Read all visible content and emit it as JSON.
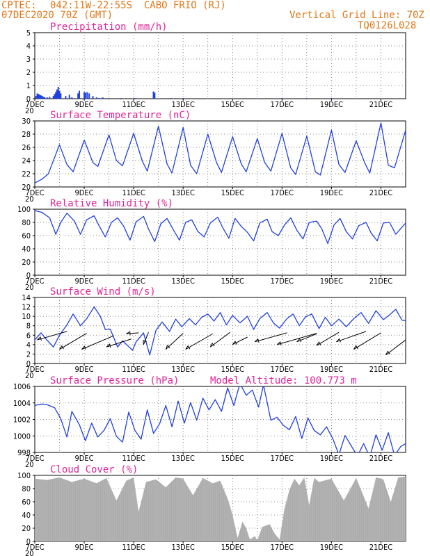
{
  "header": {
    "source": "CPTEC:",
    "location": "042:11W-22:55S  CABO FRIO (RJ)",
    "run": "07DEC2020 70Z (GMT)",
    "grid_note": "Vertical Grid Line: 70Z",
    "station_code": "TQ0126L028"
  },
  "colors": {
    "header": "#e07818",
    "titles": "#e0249a",
    "series": "#1f3fe0",
    "cloud": "#aaaaaa"
  },
  "x_ticks": [
    "7DEC",
    "9DEC",
    "11DEC",
    "13DEC",
    "15DEC",
    "17DEC",
    "19DEC",
    "21DEC"
  ],
  "x_tick_sub": "20",
  "chart_data": [
    {
      "id": "precip",
      "type": "bar",
      "title": "Precipitation (mm/h)",
      "ylim": [
        0,
        5
      ],
      "yticks": [
        "0",
        "1",
        "2",
        "3",
        "4",
        "5"
      ],
      "x_days": [
        0.05,
        0.1,
        0.15,
        0.2,
        0.25,
        0.3,
        0.35,
        0.4,
        0.5,
        0.6,
        0.75,
        0.8,
        0.85,
        0.9,
        0.95,
        1.0,
        1.05,
        1.25,
        1.4,
        1.5,
        1.75,
        1.8,
        2.0,
        2.05,
        2.12,
        2.2,
        2.35,
        2.5,
        2.6,
        2.75,
        3.0,
        3.5,
        4.05,
        4.8,
        4.85,
        5.5,
        6.0,
        7.0,
        8.0,
        9.0,
        10.0,
        11.0,
        12.0,
        13.0,
        14.0
      ],
      "values": [
        0.2,
        0.4,
        0.35,
        0.3,
        0.25,
        0.2,
        0.15,
        0.1,
        0.1,
        0.15,
        0.2,
        0.35,
        0.5,
        0.7,
        0.9,
        0.6,
        0.4,
        0.2,
        0.3,
        0.1,
        0.4,
        0.6,
        0.5,
        0.45,
        0.5,
        0.4,
        0.2,
        0.1,
        0.05,
        0.1,
        0.05,
        0.05,
        0.05,
        0.55,
        0.45,
        0.05,
        0.05,
        0.02,
        0.02,
        0.03,
        0.05,
        0.05,
        0.05,
        0.03,
        0.03
      ]
    },
    {
      "id": "temp",
      "type": "line",
      "title": "Surface Temperature (nC)",
      "ylim": [
        20,
        30
      ],
      "yticks": [
        "20",
        "22",
        "24",
        "26",
        "28",
        "30"
      ],
      "x_days": [
        0,
        0.3,
        0.55,
        1.0,
        1.3,
        1.55,
        2.0,
        2.35,
        2.55,
        3.0,
        3.3,
        3.55,
        4.0,
        4.35,
        4.55,
        5.0,
        5.35,
        5.55,
        6.0,
        6.3,
        6.55,
        7.0,
        7.35,
        7.55,
        8.0,
        8.35,
        8.55,
        9.0,
        9.3,
        9.55,
        10.0,
        10.35,
        10.55,
        11.0,
        11.35,
        11.55,
        12.0,
        12.3,
        12.55,
        13.0,
        13.35,
        13.55,
        14.0,
        14.3,
        14.55,
        15.0
      ],
      "values": [
        20.6,
        21.2,
        22.0,
        26.4,
        23.4,
        22.3,
        27.1,
        23.7,
        23.1,
        27.9,
        24.0,
        23.2,
        28.1,
        23.9,
        22.4,
        29.2,
        23.5,
        22.1,
        29.0,
        23.3,
        22.0,
        28.0,
        23.7,
        22.2,
        27.6,
        23.5,
        22.3,
        27.3,
        23.7,
        22.4,
        28.1,
        22.9,
        21.9,
        27.7,
        22.3,
        21.8,
        28.6,
        23.4,
        22.2,
        27.0,
        23.6,
        22.1,
        29.7,
        23.3,
        22.9,
        28.6
      ]
    },
    {
      "id": "rh",
      "type": "line",
      "title": "Relative Humidity (%)",
      "ylim": [
        0,
        100
      ],
      "yticks": [
        "0",
        "20",
        "40",
        "60",
        "80",
        "100"
      ],
      "x_days": [
        0,
        0.3,
        0.6,
        0.85,
        1.05,
        1.3,
        1.6,
        1.85,
        2.1,
        2.4,
        2.6,
        2.85,
        3.1,
        3.35,
        3.6,
        3.85,
        4.1,
        4.4,
        4.6,
        4.85,
        5.1,
        5.35,
        5.6,
        5.85,
        6.1,
        6.35,
        6.6,
        6.85,
        7.1,
        7.4,
        7.6,
        7.85,
        8.1,
        8.35,
        8.6,
        8.85,
        9.1,
        9.4,
        9.6,
        9.85,
        10.1,
        10.35,
        10.6,
        10.85,
        11.1,
        11.4,
        11.6,
        11.85,
        12.1,
        12.35,
        12.6,
        12.85,
        13.1,
        13.4,
        13.6,
        13.85,
        14.1,
        14.35,
        14.6,
        15.0
      ],
      "values": [
        98,
        95,
        87,
        62,
        80,
        94,
        82,
        62,
        84,
        90,
        75,
        58,
        80,
        87,
        74,
        53,
        81,
        89,
        70,
        51,
        78,
        86,
        69,
        53,
        80,
        84,
        66,
        58,
        79,
        88,
        72,
        56,
        86,
        74,
        65,
        52,
        79,
        85,
        66,
        60,
        76,
        87,
        68,
        55,
        80,
        82,
        71,
        48,
        76,
        86,
        66,
        55,
        75,
        80,
        64,
        52,
        79,
        80,
        62,
        79
      ]
    },
    {
      "id": "wind",
      "type": "line",
      "title": "Surface Wind (m/s)",
      "ylim": [
        0,
        14
      ],
      "yticks": [
        "0",
        "2",
        "4",
        "6",
        "8",
        "10",
        "12",
        "14"
      ],
      "x_days": [
        0,
        0.25,
        0.45,
        0.75,
        1.0,
        1.3,
        1.55,
        1.85,
        2.1,
        2.4,
        2.65,
        2.85,
        3.05,
        3.35,
        3.55,
        3.75,
        3.95,
        4.1,
        4.4,
        4.65,
        4.9,
        5.15,
        5.45,
        5.7,
        5.95,
        6.25,
        6.5,
        6.75,
        7.0,
        7.25,
        7.5,
        7.75,
        8.0,
        8.3,
        8.6,
        8.85,
        9.1,
        9.4,
        9.65,
        9.9,
        10.2,
        10.45,
        10.7,
        10.95,
        11.2,
        11.5,
        11.75,
        12.0,
        12.3,
        12.6,
        12.9,
        13.2,
        13.5,
        13.8,
        14.1,
        14.35,
        14.6,
        14.85,
        15.0
      ],
      "values": [
        5.0,
        6.5,
        5.2,
        3.5,
        6.0,
        8.2,
        10.5,
        8.0,
        9.5,
        12.0,
        10.0,
        7.2,
        7.3,
        3.5,
        4.8,
        3.8,
        2.8,
        4.6,
        6.5,
        1.8,
        7.0,
        8.8,
        6.8,
        9.4,
        7.8,
        9.5,
        8.2,
        9.8,
        10.5,
        9.0,
        10.8,
        8.2,
        10.2,
        8.6,
        10.0,
        7.2,
        9.5,
        10.8,
        8.6,
        7.5,
        9.5,
        10.5,
        8.0,
        9.9,
        10.5,
        7.4,
        9.8,
        8.0,
        9.4,
        7.8,
        9.5,
        10.8,
        8.5,
        11.2,
        9.3,
        10.3,
        11.5,
        9.2,
        9.1
      ]
    },
    {
      "id": "pressure",
      "type": "line",
      "title": "Surface Pressure (hPa)",
      "annotation": "Model Altitude: 100.773 m",
      "ylim": [
        997,
        1006
      ],
      "yticks": [
        "998",
        "1000",
        "1002",
        "1004",
        "1006"
      ],
      "x_days": [
        0,
        0.3,
        0.5,
        0.8,
        1.05,
        1.3,
        1.5,
        1.8,
        2.05,
        2.3,
        2.55,
        2.8,
        3.05,
        3.3,
        3.55,
        3.8,
        4.05,
        4.3,
        4.55,
        4.8,
        5.05,
        5.3,
        5.55,
        5.8,
        6.05,
        6.3,
        6.55,
        6.8,
        7.05,
        7.3,
        7.55,
        7.8,
        8.05,
        8.3,
        8.55,
        8.8,
        9.05,
        9.25,
        9.55,
        9.8,
        10.05,
        10.3,
        10.55,
        10.8,
        11.05,
        11.3,
        11.55,
        11.8,
        12.05,
        12.3,
        12.55,
        12.8,
        13.05,
        13.3,
        13.55,
        13.8,
        14.05,
        14.3,
        14.55,
        14.8,
        15.0
      ],
      "values": [
        1003.4,
        1003.6,
        1003.5,
        1003.1,
        1001.6,
        999.1,
        1002.6,
        1000.8,
        998.6,
        1001.0,
        999.1,
        1000.0,
        1001.6,
        999.2,
        998.4,
        1002.5,
        1000.0,
        998.8,
        1002.8,
        999.6,
        1000.9,
        1003.4,
        1000.5,
        1004.0,
        1001.0,
        1003.8,
        1001.4,
        1004.4,
        1002.8,
        1004.2,
        1002.6,
        1005.8,
        1003.4,
        1006.4,
        1004.8,
        1005.5,
        1003.2,
        1006.2,
        1001.4,
        1001.8,
        1000.7,
        1000.1,
        1001.9,
        998.9,
        1001.7,
        1000.0,
        999.4,
        1000.5,
        998.9,
        996.7,
        999.3,
        997.9,
        996.5,
        998.2,
        996.4,
        999.4,
        997.3,
        999.7,
        996.6,
        997.8,
        998.2
      ]
    },
    {
      "id": "cloud",
      "type": "area",
      "title": "Cloud Cover (%)",
      "ylim": [
        0,
        100
      ],
      "yticks": [
        "0",
        "20",
        "40",
        "60",
        "80",
        "100"
      ],
      "x_days": [
        0,
        0.5,
        1.0,
        1.5,
        2.0,
        2.5,
        2.9,
        3.3,
        3.7,
        4.0,
        4.2,
        4.5,
        4.9,
        5.3,
        5.7,
        6.0,
        6.4,
        6.8,
        7.2,
        7.5,
        7.8,
        8.0,
        8.2,
        8.4,
        8.55,
        8.7,
        8.9,
        9.0,
        9.2,
        9.5,
        9.7,
        9.9,
        10.1,
        10.3,
        10.5,
        10.7,
        10.9,
        11.1,
        11.3,
        11.5,
        12.0,
        12.5,
        13.0,
        13.5,
        13.8,
        14.1,
        14.4,
        14.7,
        15.0
      ],
      "values": [
        95,
        93,
        97,
        90,
        95,
        88,
        96,
        62,
        92,
        97,
        45,
        90,
        94,
        82,
        97,
        95,
        70,
        96,
        88,
        92,
        65,
        40,
        5,
        30,
        20,
        3,
        8,
        2,
        22,
        26,
        12,
        3,
        50,
        78,
        95,
        85,
        97,
        55,
        96,
        90,
        95,
        62,
        96,
        50,
        97,
        94,
        60,
        97,
        98
      ]
    }
  ]
}
